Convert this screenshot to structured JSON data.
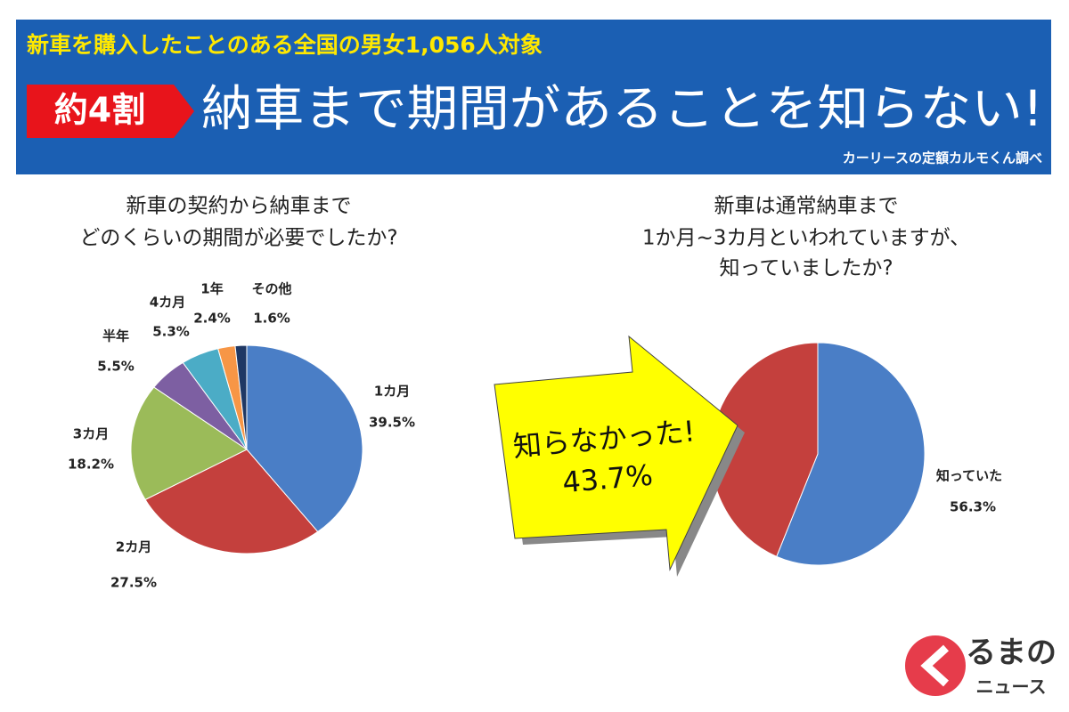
{
  "header": {
    "subtitle": "新車を購入したことのある全国の男女1,056人対象",
    "badge": "約4割",
    "headline": "納車まで期間があることを知らない!",
    "source": "カーリースの定額カルモくん調べ"
  },
  "chart_data": [
    {
      "type": "pie",
      "title": [
        "新車の契約から納車まで",
        "どのくらいの期間が必要でしたか?"
      ],
      "categories": [
        "1カ月",
        "2カ月",
        "3カ月",
        "半年",
        "4カ月",
        "1年",
        "その他"
      ],
      "values": [
        39.5,
        27.5,
        18.2,
        5.5,
        5.3,
        2.4,
        1.6
      ],
      "value_labels": [
        "39.5%",
        "27.5%",
        "18.2%",
        "5.5%",
        "5.3%",
        "2.4%",
        "1.6%"
      ],
      "colors": [
        "#4a7ec6",
        "#c4403d",
        "#9bbb59",
        "#7d5fa2",
        "#4bacc6",
        "#f79646",
        "#1f3864"
      ]
    },
    {
      "type": "pie",
      "title": [
        "新車は通常納車まで",
        "1か月~3カ月といわれていますが、",
        "知っていましたか?"
      ],
      "categories": [
        "知っていた",
        "知らなかった!"
      ],
      "values": [
        56.3,
        43.7
      ],
      "value_labels": [
        "56.3%",
        "43.7%"
      ],
      "colors": [
        "#4a7ec6",
        "#c4403d"
      ]
    }
  ],
  "logo": {
    "text": "るまの",
    "sub": "ニュース"
  }
}
